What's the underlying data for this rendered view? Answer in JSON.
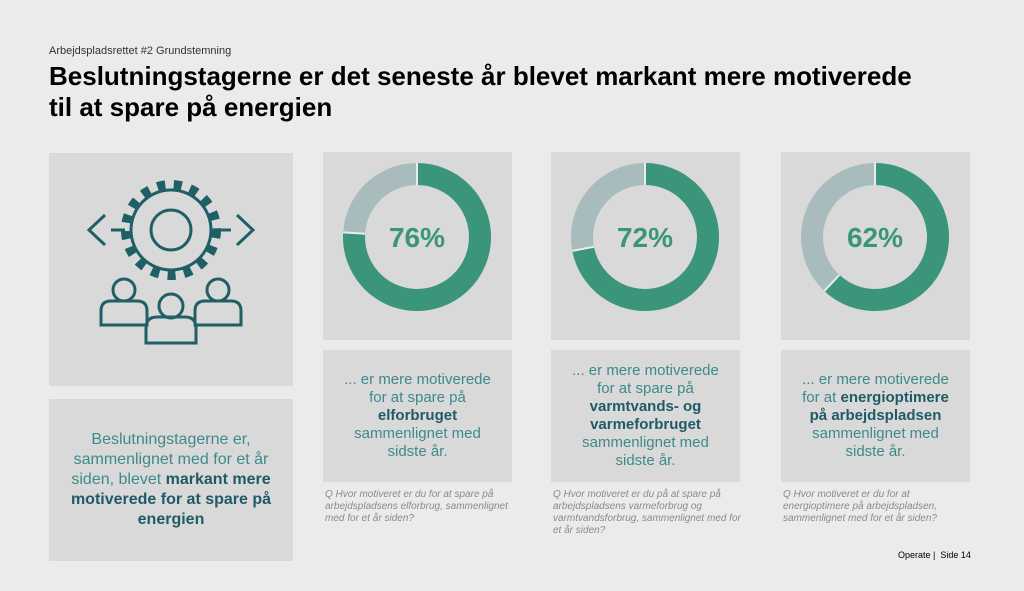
{
  "header": {
    "kicker": "Arbejdspladsrettet #2 Grundstemning",
    "title": "Beslutningstagerne er det seneste år blevet markant mere motiverede til at spare på energien"
  },
  "summary": {
    "text_before": "Beslutningstagerne er, sammenlignet med for et år siden, blevet ",
    "text_bold": "markant mere motiverede for at spare på energien"
  },
  "chart_data": [
    {
      "type": "pie",
      "donut": true,
      "values": [
        76
      ],
      "value_labels": [
        "76%"
      ],
      "color": "#3a957a",
      "rest_color": "#a9bcbd",
      "text_before": "... er mere motiverede for at spare på ",
      "text_bold": "elforbruget",
      "text_after": " sammenlignet med sidste år.",
      "question": "Q  Hvor motiveret er du for at spare på arbejdspladsens elforbrug, sammenlignet med for et år siden?"
    },
    {
      "type": "pie",
      "donut": true,
      "values": [
        72
      ],
      "value_labels": [
        "72%"
      ],
      "color": "#3a957a",
      "rest_color": "#a9bcbd",
      "text_before": "... er mere motiverede for at spare på ",
      "text_bold": "varmtvands- og varmeforbruget",
      "text_after": " sammenlignet med sidste år.",
      "question": "Q  Hvor motiveret er du på at spare på arbejdspladsens varmeforbrug og varmtvandsforbrug, sammenlignet med for et år siden?"
    },
    {
      "type": "pie",
      "donut": true,
      "values": [
        62
      ],
      "value_labels": [
        "62%"
      ],
      "color": "#3a957a",
      "rest_color": "#a9bcbd",
      "text_before": "... er mere motiverede for at ",
      "text_bold": "energioptimere på arbejdspladsen",
      "text_after": " sammenlignet med sidste år.",
      "question": "Q  Hvor motiveret er du for at energioptimere på arbejdspladsen, sammenlignet med for et år siden?"
    }
  ],
  "footer": "Operate |  Side 14"
}
